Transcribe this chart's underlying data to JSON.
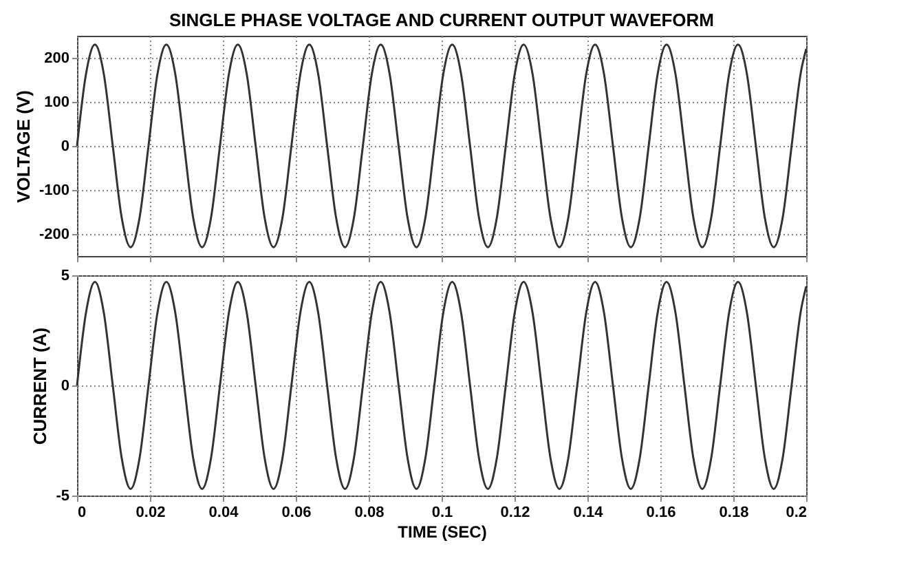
{
  "chart_data": [
    {
      "type": "line",
      "title": "SINGLE PHASE VOLTAGE AND CURRENT OUTPUT WAVEFORM",
      "ylabel": "VOLTAGE (V)",
      "x": [
        0,
        0.00245,
        0.0049,
        0.00735,
        0.0098,
        0.01225,
        0.0147,
        0.01715,
        0.0196,
        0.02205,
        0.0245,
        0.02695,
        0.0294,
        0.03185,
        0.0343,
        0.03675,
        0.0392,
        0.04165,
        0.0441,
        0.04655,
        0.049,
        0.05145,
        0.0539,
        0.05635,
        0.0588,
        0.06125,
        0.0637,
        0.06615,
        0.0686,
        0.07105,
        0.0735,
        0.07595,
        0.0784,
        0.08085,
        0.0833,
        0.08575,
        0.0882,
        0.09065,
        0.0931,
        0.09555,
        0.098,
        0.10045,
        0.1029,
        0.10535,
        0.1078,
        0.11025,
        0.1127,
        0.11515,
        0.1176,
        0.12005,
        0.1225,
        0.12495,
        0.1274,
        0.12985,
        0.1323,
        0.13475,
        0.1372,
        0.13965,
        0.1421,
        0.14455,
        0.147,
        0.14945,
        0.1519,
        0.15435,
        0.1568,
        0.15925,
        0.1617,
        0.16415,
        0.1666,
        0.16905,
        0.1715,
        0.17395,
        0.1764,
        0.17885,
        0.1813,
        0.18375,
        0.1862,
        0.18865,
        0.1911,
        0.19355,
        0.196,
        0.19845,
        0.2
      ],
      "series": [
        {
          "color": "#333333",
          "values": [
            0,
            163,
            230,
            163,
            0,
            -163,
            -230,
            -163,
            0,
            163,
            230,
            163,
            0,
            -163,
            -230,
            -163,
            0,
            163,
            230,
            163,
            0,
            -163,
            -230,
            -163,
            0,
            163,
            230,
            163,
            0,
            -163,
            -230,
            -163,
            0,
            163,
            230,
            163,
            0,
            -163,
            -230,
            -163,
            0,
            163,
            230,
            163,
            0,
            -163,
            -230,
            -163,
            0,
            163,
            230,
            163,
            0,
            -163,
            -230,
            -163,
            0,
            163,
            230,
            163,
            0,
            -163,
            -230,
            -163,
            0,
            163,
            230,
            163,
            0,
            -163,
            -230,
            -163,
            0,
            163,
            230,
            163,
            0,
            -163,
            -230,
            -163,
            0,
            163,
            220
          ]
        }
      ],
      "xlim": [
        0,
        0.2
      ],
      "xticks": [
        0,
        0.02,
        0.04,
        0.06,
        0.08,
        0.1,
        0.12,
        0.14,
        0.16,
        0.18,
        0.2
      ],
      "ylim": [
        -250,
        250
      ],
      "yticks": [
        -200,
        -100,
        0,
        100,
        200
      ],
      "grid": true,
      "tick_labels": "y",
      "line_style": "solid"
    },
    {
      "type": "line",
      "xlabel": "TIME (SEC)",
      "ylabel": "CURRENT (A)",
      "x": [
        0,
        0.00245,
        0.0049,
        0.00735,
        0.0098,
        0.01225,
        0.0147,
        0.01715,
        0.0196,
        0.02205,
        0.0245,
        0.02695,
        0.0294,
        0.03185,
        0.0343,
        0.03675,
        0.0392,
        0.04165,
        0.0441,
        0.04655,
        0.049,
        0.05145,
        0.0539,
        0.05635,
        0.0588,
        0.06125,
        0.0637,
        0.06615,
        0.0686,
        0.07105,
        0.0735,
        0.07595,
        0.0784,
        0.08085,
        0.0833,
        0.08575,
        0.0882,
        0.09065,
        0.0931,
        0.09555,
        0.098,
        0.10045,
        0.1029,
        0.10535,
        0.1078,
        0.11025,
        0.1127,
        0.11515,
        0.1176,
        0.12005,
        0.1225,
        0.12495,
        0.1274,
        0.12985,
        0.1323,
        0.13475,
        0.1372,
        0.13965,
        0.1421,
        0.14455,
        0.147,
        0.14945,
        0.1519,
        0.15435,
        0.1568,
        0.15925,
        0.1617,
        0.16415,
        0.1666,
        0.16905,
        0.1715,
        0.17395,
        0.1764,
        0.17885,
        0.1813,
        0.18375,
        0.1862,
        0.18865,
        0.1911,
        0.19355,
        0.196,
        0.19845,
        0.2
      ],
      "series": [
        {
          "color": "#333333",
          "values": [
            0,
            3.3,
            4.7,
            3.3,
            0,
            -3.3,
            -4.7,
            -3.3,
            0,
            3.3,
            4.7,
            3.3,
            0,
            -3.3,
            -4.7,
            -3.3,
            0,
            3.3,
            4.7,
            3.3,
            0,
            -3.3,
            -4.7,
            -3.3,
            0,
            3.3,
            4.7,
            3.3,
            0,
            -3.3,
            -4.7,
            -3.3,
            0,
            3.3,
            4.7,
            3.3,
            0,
            -3.3,
            -4.7,
            -3.3,
            0,
            3.3,
            4.7,
            3.3,
            0,
            -3.3,
            -4.7,
            -3.3,
            0,
            3.3,
            4.7,
            3.3,
            0,
            -3.3,
            -4.7,
            -3.3,
            0,
            3.3,
            4.7,
            3.3,
            0,
            -3.3,
            -4.7,
            -3.3,
            0,
            3.3,
            4.7,
            3.3,
            0,
            -3.3,
            -4.7,
            -3.3,
            0,
            3.3,
            4.7,
            3.3,
            0,
            -3.3,
            -4.7,
            -3.3,
            0,
            3.3,
            4.5
          ]
        }
      ],
      "xlim": [
        0,
        0.2
      ],
      "xticks": [
        0,
        0.02,
        0.04,
        0.06,
        0.08,
        0.1,
        0.12,
        0.14,
        0.16,
        0.18,
        0.2
      ],
      "ylim": [
        -5,
        5
      ],
      "yticks": [
        -5,
        0,
        5
      ],
      "grid": true,
      "line_style": "solid"
    }
  ]
}
